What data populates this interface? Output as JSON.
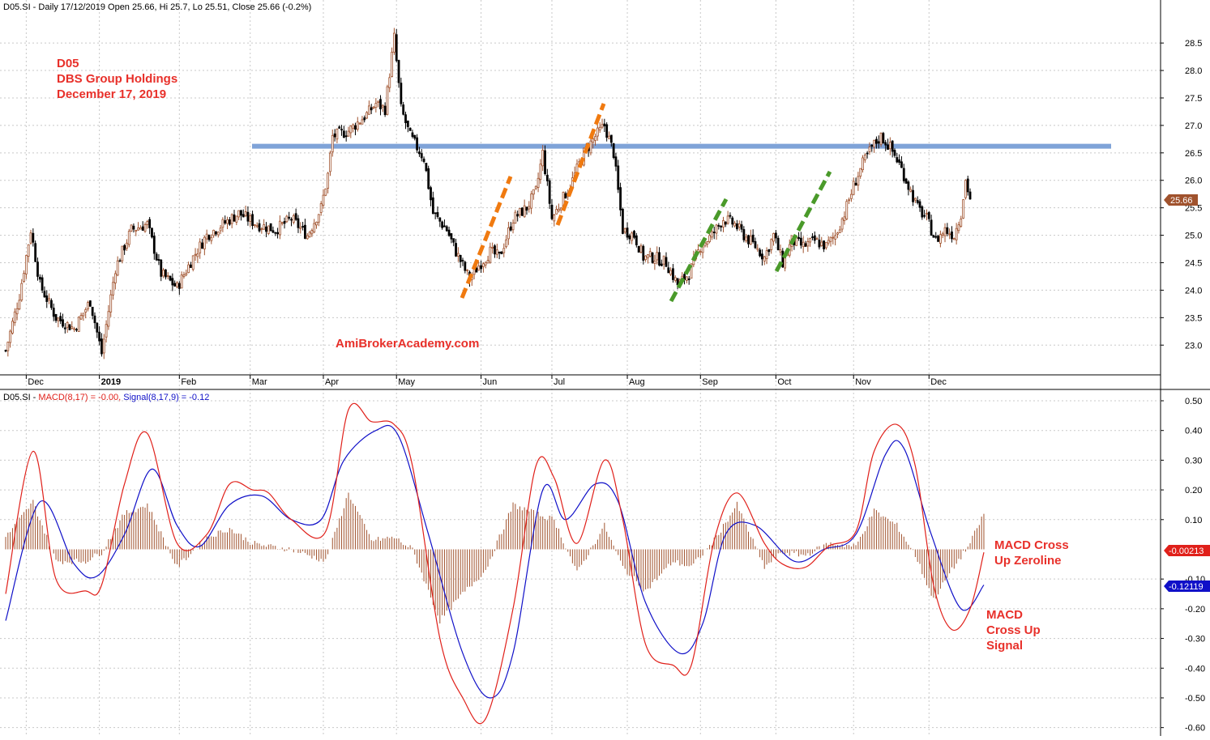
{
  "price_panel": {
    "header": "D05.SI - Daily 17/12/2019 Open 25.66, Hi 25.7, Lo 25.51, Close 25.66 (-0.2%)",
    "last_price_tag": "25.66",
    "annotations": {
      "ticker": "D05",
      "company": "DBS Group Holdings",
      "date": "December 17, 2019",
      "watermark": "AmiBrokerAcademy.com"
    }
  },
  "macd_panel": {
    "header_prefix": "D05.SI - ",
    "macd_label": "MACD(8,17) = -0.00, ",
    "signal_label": "Signal(8,17,9) = -0.12",
    "macd_tag": "-0.00213",
    "signal_tag": "-0.12119",
    "annotation_zero": [
      "MACD Cross",
      "Up Zeroline"
    ],
    "annotation_signal": [
      "MACD",
      "Cross Up",
      "Signal"
    ]
  },
  "colors": {
    "up": "#a0522d",
    "down": "#000000",
    "macd": "#e0201a",
    "signal": "#1010c8",
    "histogram": "#a0522d",
    "resistance": "#7fa3d8",
    "orange_trend": "#f07a10",
    "green_trend": "#4a9a2a",
    "annotation": "#e8302a",
    "grid": "#c8c8c8"
  },
  "chart_data": [
    {
      "type": "candlestick",
      "title": "D05.SI - Daily 17/12/2019 Open 25.66, Hi 25.7, Lo 25.51, Close 25.66 (-0.2%)",
      "x_tick_labels": [
        "Dec",
        "2019",
        "Feb",
        "Mar",
        "Apr",
        "May",
        "Jun",
        "Jul",
        "Aug",
        "Sep",
        "Oct",
        "Nov",
        "Dec"
      ],
      "y_tick_labels": [
        "23.0",
        "23.5",
        "24.0",
        "24.5",
        "25.0",
        "25.5",
        "26.0",
        "26.5",
        "27.0",
        "27.5",
        "28.0",
        "28.5"
      ],
      "ylim": [
        22.65,
        28.9
      ],
      "grid": true,
      "resistance_level": 26.62,
      "last_close": 25.66,
      "anchors": [
        [
          0,
          22.9
        ],
        [
          6,
          23.9
        ],
        [
          11,
          25.1
        ],
        [
          15,
          24.1
        ],
        [
          22,
          23.5
        ],
        [
          30,
          23.3
        ],
        [
          37,
          23.8
        ],
        [
          42,
          22.85
        ],
        [
          48,
          24.4
        ],
        [
          55,
          25.1
        ],
        [
          62,
          25.2
        ],
        [
          68,
          24.3
        ],
        [
          75,
          24.05
        ],
        [
          82,
          24.6
        ],
        [
          88,
          25.0
        ],
        [
          95,
          25.2
        ],
        [
          102,
          25.4
        ],
        [
          110,
          25.2
        ],
        [
          118,
          25.1
        ],
        [
          125,
          25.3
        ],
        [
          132,
          25.0
        ],
        [
          138,
          25.5
        ],
        [
          141,
          26.1
        ],
        [
          143,
          26.8
        ],
        [
          150,
          26.9
        ],
        [
          158,
          27.2
        ],
        [
          162,
          27.4
        ],
        [
          166,
          27.3
        ],
        [
          170,
          28.6
        ],
        [
          173,
          27.3
        ],
        [
          177,
          26.8
        ],
        [
          183,
          26.4
        ],
        [
          187,
          25.4
        ],
        [
          193,
          25.1
        ],
        [
          197,
          24.7
        ],
        [
          203,
          24.2
        ],
        [
          207,
          24.45
        ],
        [
          212,
          24.7
        ],
        [
          216,
          24.6
        ],
        [
          222,
          25.3
        ],
        [
          228,
          25.5
        ],
        [
          232,
          25.8
        ],
        [
          235,
          26.5
        ],
        [
          239,
          25.3
        ],
        [
          243,
          25.6
        ],
        [
          248,
          26.0
        ],
        [
          253,
          26.5
        ],
        [
          258,
          26.8
        ],
        [
          262,
          27.0
        ],
        [
          266,
          26.5
        ],
        [
          270,
          25.1
        ],
        [
          275,
          25.0
        ],
        [
          279,
          24.6
        ],
        [
          284,
          24.6
        ],
        [
          289,
          24.5
        ],
        [
          294,
          24.1
        ],
        [
          299,
          24.3
        ],
        [
          304,
          24.8
        ],
        [
          309,
          25.0
        ],
        [
          314,
          25.3
        ],
        [
          319,
          25.2
        ],
        [
          323,
          25.0
        ],
        [
          328,
          24.8
        ],
        [
          332,
          24.6
        ],
        [
          336,
          25.0
        ],
        [
          340,
          24.5
        ],
        [
          344,
          24.9
        ],
        [
          349,
          24.8
        ],
        [
          354,
          24.9
        ],
        [
          359,
          24.8
        ],
        [
          363,
          25.0
        ],
        [
          367,
          25.4
        ],
        [
          371,
          25.9
        ],
        [
          375,
          26.3
        ],
        [
          379,
          26.6
        ],
        [
          383,
          26.8
        ],
        [
          387,
          26.6
        ],
        [
          391,
          26.3
        ],
        [
          395,
          25.9
        ],
        [
          399,
          25.5
        ],
        [
          403,
          25.3
        ],
        [
          407,
          24.9
        ],
        [
          411,
          25.1
        ],
        [
          415,
          25.0
        ],
        [
          418,
          25.4
        ],
        [
          420,
          26.0
        ],
        [
          422,
          25.66
        ]
      ]
    },
    {
      "type": "line",
      "title": "D05.SI - MACD(8,17) = -0.00, Signal(8,17,9) = -0.12",
      "y_tick_labels": [
        "-0.60",
        "-0.50",
        "-0.40",
        "-0.30",
        "-0.20",
        "-0.10",
        "0.10",
        "0.20",
        "0.30",
        "0.40",
        "0.50"
      ],
      "ylim": [
        -0.62,
        0.53
      ],
      "grid": true,
      "series": [
        {
          "name": "MACD(8,17)",
          "points": [
            [
              0,
              -0.15
            ],
            [
              12,
              0.33
            ],
            [
              22,
              -0.1
            ],
            [
              35,
              -0.14
            ],
            [
              42,
              -0.12
            ],
            [
              52,
              0.22
            ],
            [
              62,
              0.39
            ],
            [
              75,
              0.02
            ],
            [
              88,
              0.05
            ],
            [
              98,
              0.22
            ],
            [
              108,
              0.2
            ],
            [
              115,
              0.19
            ],
            [
              125,
              0.1
            ],
            [
              140,
              0.06
            ],
            [
              150,
              0.47
            ],
            [
              160,
              0.43
            ],
            [
              170,
              0.42
            ],
            [
              178,
              0.28
            ],
            [
              190,
              -0.3
            ],
            [
              200,
              -0.5
            ],
            [
              210,
              -0.57
            ],
            [
              222,
              -0.2
            ],
            [
              232,
              0.28
            ],
            [
              240,
              0.24
            ],
            [
              250,
              0.02
            ],
            [
              262,
              0.3
            ],
            [
              270,
              0.1
            ],
            [
              280,
              -0.32
            ],
            [
              292,
              -0.39
            ],
            [
              300,
              -0.39
            ],
            [
              310,
              0.03
            ],
            [
              320,
              0.19
            ],
            [
              332,
              0.02
            ],
            [
              340,
              -0.05
            ],
            [
              350,
              -0.06
            ],
            [
              360,
              0.01
            ],
            [
              372,
              0.06
            ],
            [
              380,
              0.33
            ],
            [
              390,
              0.42
            ],
            [
              398,
              0.28
            ],
            [
              406,
              -0.12
            ],
            [
              414,
              -0.27
            ],
            [
              422,
              -0.2
            ],
            [
              428,
              -0.01
            ]
          ]
        },
        {
          "name": "Signal(8,17,9)",
          "points": [
            [
              0,
              -0.24
            ],
            [
              15,
              0.16
            ],
            [
              30,
              -0.05
            ],
            [
              40,
              -0.09
            ],
            [
              52,
              0.05
            ],
            [
              64,
              0.27
            ],
            [
              75,
              0.08
            ],
            [
              85,
              0.01
            ],
            [
              98,
              0.15
            ],
            [
              112,
              0.18
            ],
            [
              125,
              0.1
            ],
            [
              138,
              0.1
            ],
            [
              148,
              0.3
            ],
            [
              162,
              0.4
            ],
            [
              172,
              0.38
            ],
            [
              185,
              0.05
            ],
            [
              200,
              -0.35
            ],
            [
              212,
              -0.5
            ],
            [
              222,
              -0.35
            ],
            [
              235,
              0.2
            ],
            [
              245,
              0.1
            ],
            [
              258,
              0.22
            ],
            [
              268,
              0.16
            ],
            [
              280,
              -0.18
            ],
            [
              295,
              -0.35
            ],
            [
              305,
              -0.25
            ],
            [
              315,
              0.05
            ],
            [
              328,
              0.08
            ],
            [
              345,
              -0.04
            ],
            [
              358,
              0.0
            ],
            [
              372,
              0.05
            ],
            [
              385,
              0.32
            ],
            [
              393,
              0.34
            ],
            [
              405,
              0.05
            ],
            [
              418,
              -0.2
            ],
            [
              428,
              -0.12
            ]
          ]
        },
        {
          "name": "histogram",
          "points": [
            [
              0,
              0.04
            ],
            [
              12,
              0.16
            ],
            [
              22,
              -0.04
            ],
            [
              35,
              -0.04
            ],
            [
              42,
              -0.01
            ],
            [
              52,
              0.12
            ],
            [
              62,
              0.15
            ],
            [
              75,
              -0.06
            ],
            [
              88,
              0.04
            ],
            [
              98,
              0.07
            ],
            [
              108,
              0.02
            ],
            [
              115,
              0.01
            ],
            [
              125,
              0.0
            ],
            [
              140,
              -0.04
            ],
            [
              150,
              0.19
            ],
            [
              160,
              0.03
            ],
            [
              170,
              0.04
            ],
            [
              178,
              0.0
            ],
            [
              190,
              -0.24
            ],
            [
              200,
              -0.15
            ],
            [
              210,
              -0.07
            ],
            [
              222,
              0.15
            ],
            [
              232,
              0.12
            ],
            [
              240,
              0.1
            ],
            [
              250,
              -0.08
            ],
            [
              262,
              0.08
            ],
            [
              270,
              -0.06
            ],
            [
              280,
              -0.14
            ],
            [
              292,
              -0.04
            ],
            [
              300,
              -0.06
            ],
            [
              310,
              0.03
            ],
            [
              320,
              0.15
            ],
            [
              332,
              -0.06
            ],
            [
              340,
              -0.01
            ],
            [
              350,
              -0.02
            ],
            [
              360,
              0.02
            ],
            [
              372,
              0.01
            ],
            [
              380,
              0.13
            ],
            [
              390,
              0.08
            ],
            [
              398,
              -0.02
            ],
            [
              406,
              -0.17
            ],
            [
              414,
              -0.07
            ],
            [
              422,
              0.02
            ],
            [
              428,
              0.12
            ]
          ]
        }
      ]
    }
  ]
}
